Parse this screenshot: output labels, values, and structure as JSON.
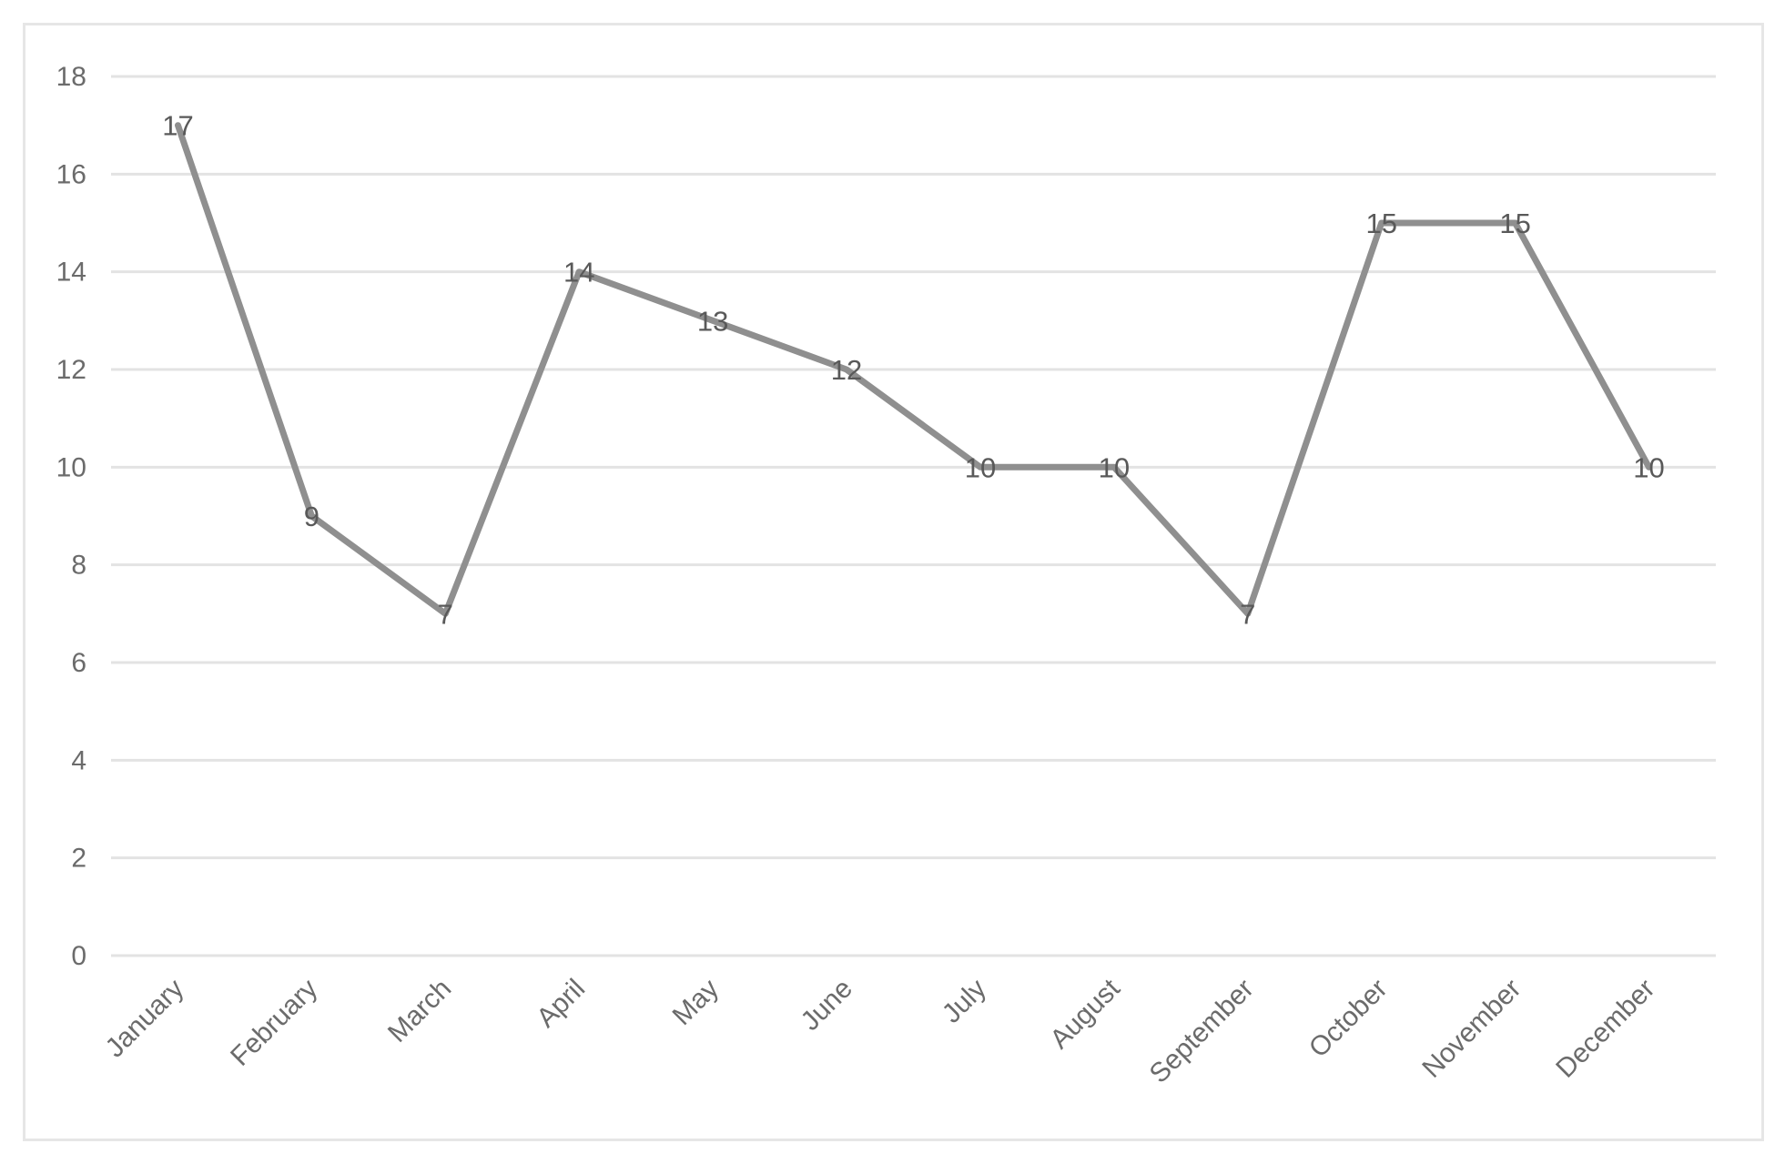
{
  "chart_data": {
    "type": "line",
    "title": "",
    "xlabel": "",
    "ylabel": "",
    "categories": [
      "January",
      "February",
      "March",
      "April",
      "May",
      "June",
      "July",
      "August",
      "September",
      "October",
      "November",
      "December"
    ],
    "series": [
      {
        "values": [
          17,
          9,
          7,
          14,
          13,
          12,
          10,
          10,
          7,
          15,
          15,
          10
        ],
        "color": "#8f8f8f"
      }
    ],
    "ylim": [
      0,
      18
    ],
    "yticks": [
      "0",
      "2",
      "4",
      "6",
      "8",
      "10",
      "12",
      "14",
      "16",
      "18"
    ],
    "data_labels": [
      "17",
      "9",
      "7",
      "14",
      "13",
      "12",
      "10",
      "10",
      "7",
      "15",
      "15",
      "10"
    ],
    "grid": true,
    "legend": "none"
  }
}
